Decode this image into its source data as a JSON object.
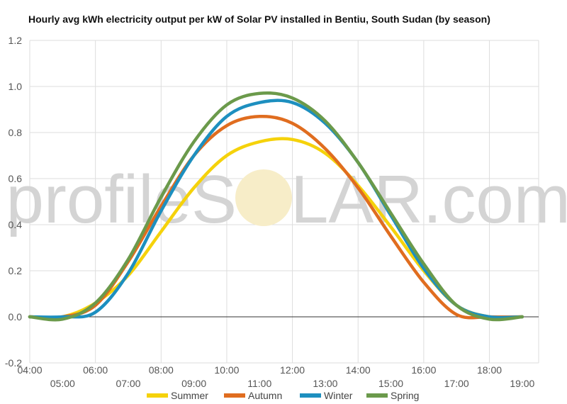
{
  "chart_data": {
    "type": "line",
    "title": "Hourly avg kWh electricity output per kW of Solar PV installed in Bentiu, South Sudan (by season)",
    "xlabel": "",
    "ylabel": "",
    "ylim": [
      -0.2,
      1.2
    ],
    "xlim": [
      4,
      19.5
    ],
    "y_ticks": [
      -0.2,
      0.0,
      0.2,
      0.4,
      0.6,
      0.8,
      1.0,
      1.2
    ],
    "y_tick_labels": [
      "-0.2",
      "0.0",
      "0.2",
      "0.4",
      "0.6",
      "0.8",
      "1.0",
      "1.2"
    ],
    "x_ticks": [
      4,
      5,
      6,
      7,
      8,
      9,
      10,
      11,
      12,
      13,
      14,
      15,
      16,
      17,
      18,
      19
    ],
    "x_tick_labels": [
      "04:00",
      "05:00",
      "06:00",
      "07:00",
      "08:00",
      "09:00",
      "10:00",
      "11:00",
      "12:00",
      "13:00",
      "14:00",
      "15:00",
      "16:00",
      "17:00",
      "18:00",
      "19:00"
    ],
    "grid": true,
    "legend_position": "bottom",
    "x": [
      4,
      5,
      6,
      7,
      8,
      9,
      10,
      11,
      12,
      13,
      14,
      15,
      16,
      17,
      18,
      19
    ],
    "series": [
      {
        "name": "Summer",
        "color": "#f5d20b",
        "values": [
          0.0,
          0.0,
          0.06,
          0.18,
          0.37,
          0.56,
          0.7,
          0.76,
          0.77,
          0.71,
          0.57,
          0.39,
          0.2,
          0.05,
          0.0,
          0.0
        ]
      },
      {
        "name": "Autumn",
        "color": "#e06d1f",
        "values": [
          0.0,
          0.0,
          0.05,
          0.24,
          0.48,
          0.7,
          0.83,
          0.87,
          0.84,
          0.73,
          0.56,
          0.35,
          0.15,
          0.01,
          0.0,
          0.0
        ]
      },
      {
        "name": "Winter",
        "color": "#1d8fbf",
        "values": [
          0.0,
          0.0,
          0.02,
          0.19,
          0.46,
          0.7,
          0.87,
          0.93,
          0.93,
          0.84,
          0.67,
          0.44,
          0.21,
          0.05,
          0.0,
          0.0
        ]
      },
      {
        "name": "Spring",
        "color": "#6b9a4b",
        "values": [
          0.0,
          -0.01,
          0.06,
          0.25,
          0.52,
          0.76,
          0.92,
          0.97,
          0.95,
          0.85,
          0.67,
          0.45,
          0.23,
          0.05,
          -0.01,
          0.0
        ]
      }
    ]
  },
  "watermark": {
    "text_left": "profileS",
    "text_right": "LAR.com",
    "sun_color": "#f7edc8",
    "text_color": "#d4d4d4"
  }
}
